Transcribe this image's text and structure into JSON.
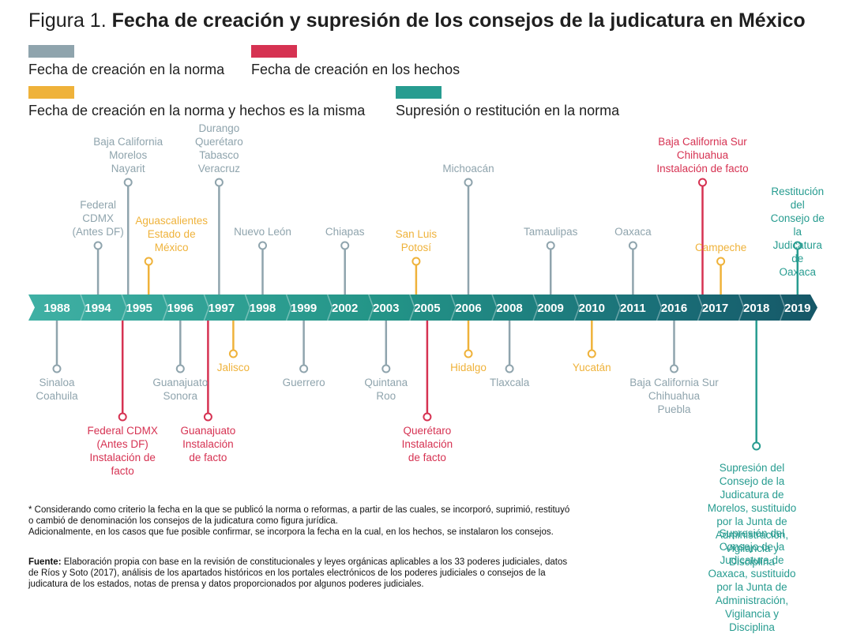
{
  "figure": {
    "prefix": "Figura 1.",
    "title": "Fecha de creación y supresión de los consejos de la judicatura en México"
  },
  "legend": [
    {
      "label": "Fecha de creación en la norma",
      "color": "#8fa4ad"
    },
    {
      "label": "Fecha de creación en los hechos",
      "color": "#d63252"
    },
    {
      "label": "Fecha de creación en la norma y hechos es la misma",
      "color": "#efb23a"
    },
    {
      "label": "Supresión o restitución en la norma",
      "color": "#279c90"
    }
  ],
  "colors": {
    "gray": "#8fa4ad",
    "red": "#d63252",
    "yellow": "#efb23a",
    "teal": "#279c90"
  },
  "years": [
    "1988",
    "1994",
    "1995",
    "1996",
    "1997",
    "1998",
    "1999",
    "2002",
    "2003",
    "2005",
    "2006",
    "2008",
    "2009",
    "2010",
    "2011",
    "2016",
    "2017",
    "2018",
    "2019"
  ],
  "events": [
    {
      "year": "1994",
      "side": "above",
      "color": "gray",
      "stem": "medium",
      "text": "Federal\nCDMX\n(Antes DF)"
    },
    {
      "year": "1995",
      "side": "above",
      "color": "gray",
      "stem": "long",
      "text": "Baja California\nMorelos\nNayarit"
    },
    {
      "year": "1995",
      "side": "above",
      "color": "yellow",
      "stem": "short",
      "text": "Aguascalientes\nEstado de\nMéxico"
    },
    {
      "year": "1997",
      "side": "above",
      "color": "gray",
      "stem": "long",
      "text": "Durango\nQuerétaro\nTabasco\nVeracruz"
    },
    {
      "year": "1998",
      "side": "above",
      "color": "gray",
      "stem": "medium",
      "text": "Nuevo León"
    },
    {
      "year": "2002",
      "side": "above",
      "color": "gray",
      "stem": "medium",
      "text": "Chiapas"
    },
    {
      "year": "2005",
      "side": "above",
      "color": "yellow",
      "stem": "short",
      "text": "San Luis\nPotosí"
    },
    {
      "year": "2006",
      "side": "above",
      "color": "gray",
      "stem": "long",
      "text": "Michoacán"
    },
    {
      "year": "2009",
      "side": "above",
      "color": "gray",
      "stem": "medium",
      "text": "Tamaulipas"
    },
    {
      "year": "2011",
      "side": "above",
      "color": "gray",
      "stem": "medium",
      "text": "Oaxaca"
    },
    {
      "year": "2016",
      "side": "above",
      "color": "red",
      "stem": "long",
      "text": "Baja California Sur\nChihuahua\nInstalación de facto"
    },
    {
      "year": "2017",
      "side": "above",
      "color": "yellow",
      "stem": "short",
      "text": "Campeche"
    },
    {
      "year": "2019",
      "side": "above",
      "color": "teal",
      "stem": "medium",
      "text": "Restitución del\nConsejo de la\nJudicatura de\nOaxaca"
    },
    {
      "year": "1988",
      "side": "below",
      "color": "gray",
      "stem": "medium",
      "text": "Sinaloa\nCoahuila"
    },
    {
      "year": "1995",
      "side": "below",
      "color": "red",
      "stem": "long",
      "text": "Federal CDMX\n(Antes DF)\nInstalación de\nfacto"
    },
    {
      "year": "1996",
      "side": "below",
      "color": "gray",
      "stem": "medium",
      "text": "Guanajuato\nSonora"
    },
    {
      "year": "1997",
      "side": "below",
      "color": "red",
      "stem": "long",
      "text": "Guanajuato\nInstalación\nde facto"
    },
    {
      "year": "1997",
      "side": "below",
      "color": "yellow",
      "stem": "short",
      "text": "Jalisco"
    },
    {
      "year": "1999",
      "side": "below",
      "color": "gray",
      "stem": "medium",
      "text": "Guerrero"
    },
    {
      "year": "2003",
      "side": "below",
      "color": "gray",
      "stem": "medium",
      "text": "Quintana\nRoo"
    },
    {
      "year": "2005",
      "side": "below",
      "color": "red",
      "stem": "long",
      "text": "Querétaro\nInstalación\nde facto"
    },
    {
      "year": "2006",
      "side": "below",
      "color": "yellow",
      "stem": "short",
      "text": "Hidalgo"
    },
    {
      "year": "2008",
      "side": "below",
      "color": "gray",
      "stem": "medium",
      "text": "Tlaxcala"
    },
    {
      "year": "2010",
      "side": "below",
      "color": "yellow",
      "stem": "short",
      "text": "Yucatán"
    },
    {
      "year": "2016",
      "side": "below",
      "color": "gray",
      "stem": "medium",
      "text": "Baja California Sur\nChihuahua\nPuebla"
    },
    {
      "year": "2018",
      "side": "below",
      "color": "teal",
      "stem": "xlong",
      "text": ""
    }
  ],
  "suppressions": [
    "Supresión del Consejo de la\nJudicatura de Morelos, sustituido\npor la Junta de Administración,\nVigilancia y Disciplina",
    "Supresión del Consejo de la\nJudicatura de Oaxaca, sustituido\npor la Junta de Administración,\nVigilancia y Disciplina"
  ],
  "footnote": "* Considerando como criterio la fecha en la que se publicó la norma o reformas, a partir de las cuales, se incorporó, suprimió, restituyó\n   o cambió de denominación los consejos de la judicatura como figura jurídica.\n   Adicionalmente, en los casos que fue posible confirmar, se incorpora la fecha en la cual, en los hechos, se instalaron los consejos.",
  "source": {
    "label": "Fuente:",
    "text": " Elaboración propia con base en la revisión de constitucionales y leyes orgánicas aplicables a los 33 poderes judiciales, datos\nde Ríos y Soto (2017), análisis de los apartados históricos en los portales electrónicos de los poderes judiciales o consejos de la\njudicatura de los estados, notas de prensa y datos proporcionados por algunos poderes judiciales."
  }
}
